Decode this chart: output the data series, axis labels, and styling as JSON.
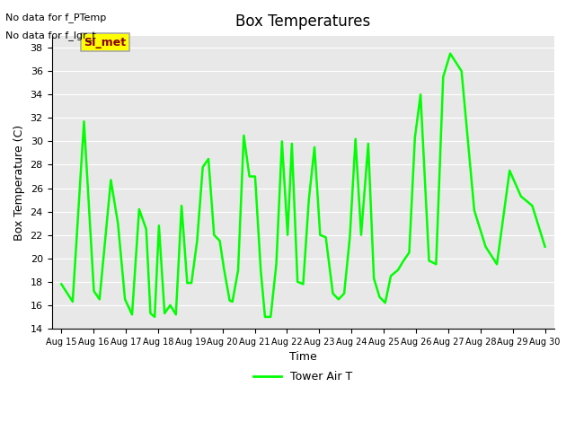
{
  "title": "Box Temperatures",
  "xlabel": "Time",
  "ylabel": "Box Temperature (C)",
  "ylim": [
    14,
    39
  ],
  "yticks": [
    14,
    16,
    18,
    20,
    22,
    24,
    26,
    28,
    30,
    32,
    34,
    36,
    38
  ],
  "line_color": "#00FF00",
  "line_width": 1.8,
  "bg_color": "#E8E8E8",
  "no_data_text1": "No data for f_PTemp",
  "no_data_text2": "No data for f_lgr_t",
  "si_met_label": "SI_met",
  "legend_label": "Tower Air T",
  "x_labels": [
    "Aug 15",
    "Aug 16",
    "Aug 17",
    "Aug 18",
    "Aug 19",
    "Aug 20",
    "Aug 21",
    "Aug 22",
    "Aug 23",
    "Aug 24",
    "Aug 25",
    "Aug 26",
    "Aug 27",
    "Aug 28",
    "Aug 29",
    "Aug 30"
  ],
  "x_values": [
    0,
    1,
    2,
    3,
    4,
    5,
    6,
    7,
    8,
    9,
    10,
    11,
    12,
    13,
    14,
    15
  ],
  "y_data": [
    17.8,
    16.3,
    31.7,
    17.2,
    16.5,
    26.7,
    23.0,
    16.5,
    15.2,
    24.2,
    22.5,
    15.3,
    15.0,
    22.8,
    15.3,
    16.0,
    15.2,
    24.5,
    17.9,
    17.9,
    21.5,
    27.8,
    28.5,
    22.0,
    21.5,
    19.1,
    16.4,
    16.3,
    19.0,
    30.5,
    27.0,
    27.0,
    19.0,
    15.0,
    15.0,
    19.5,
    30.0,
    22.0,
    29.8,
    18.0,
    17.8,
    25.0,
    29.5,
    22.0,
    21.8,
    17.0,
    16.5,
    17.0,
    21.8,
    30.2,
    22.0,
    29.8,
    18.3,
    16.7,
    16.2,
    18.5,
    19.0,
    19.8,
    20.5,
    30.3,
    34.0,
    19.8,
    19.5,
    35.5,
    37.5,
    36.0,
    24.1,
    21.0,
    19.5,
    27.5,
    25.3,
    24.5,
    21.0
  ],
  "x_data_norm": [
    0.0,
    0.08,
    0.16,
    0.23,
    0.27,
    0.35,
    0.4,
    0.45,
    0.5,
    0.55,
    0.6,
    0.63,
    0.66,
    0.69,
    0.73,
    0.77,
    0.81,
    0.85,
    0.89,
    0.92,
    0.96,
    1.0,
    1.04,
    1.08,
    1.12,
    1.15,
    1.19,
    1.21,
    1.25,
    1.29,
    1.33,
    1.37,
    1.41,
    1.44,
    1.48,
    1.52,
    1.56,
    1.6,
    1.63,
    1.67,
    1.71,
    1.75,
    1.79,
    1.83,
    1.87,
    1.92,
    1.96,
    2.0,
    2.04,
    2.08,
    2.12,
    2.17,
    2.21,
    2.25,
    2.29,
    2.33,
    2.38,
    2.42,
    2.46,
    2.5,
    2.54,
    2.6,
    2.65,
    2.7,
    2.75,
    2.83,
    2.92,
    3.0,
    3.08,
    3.17,
    3.25,
    3.33,
    3.42
  ]
}
